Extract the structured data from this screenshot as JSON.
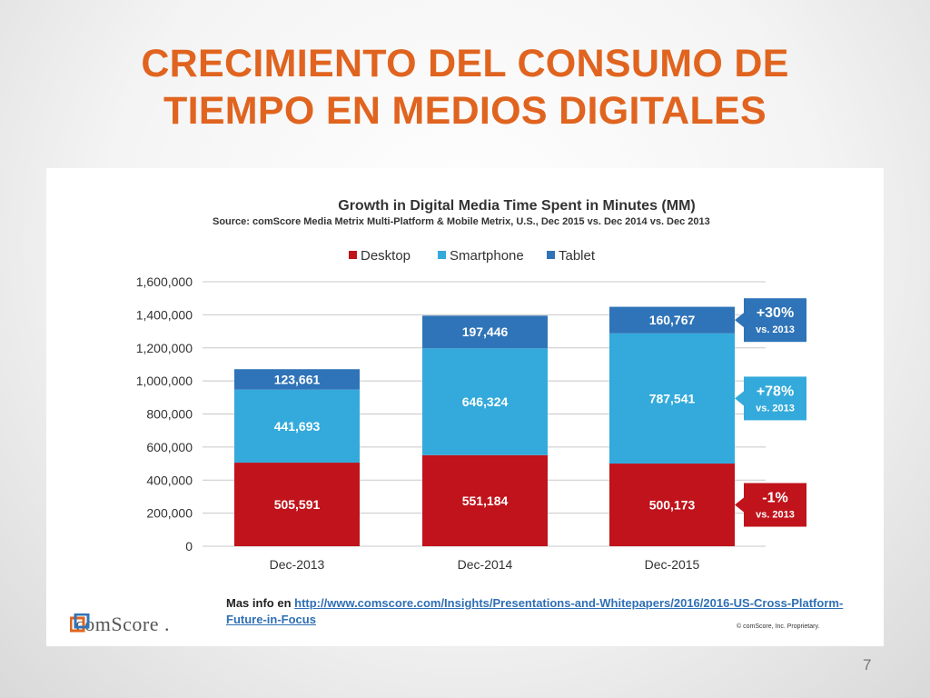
{
  "slide": {
    "title_line1": "CRECIMIENTO DEL CONSUMO DE",
    "title_line2": "TIEMPO EN MEDIOS DIGITALES",
    "page_number": "7"
  },
  "footer": {
    "more_info_prefix": "Mas info en ",
    "link_text": "http://www.comscore.com/Insights/Presentations-and-Whitepapers/2016/2016-US-Cross-Platform-Future-in-Focus",
    "copyright": "© comScore, Inc. Proprietary.",
    "logo_text": "comScore",
    "logo_mark": "."
  },
  "colors": {
    "title": "#e0641f",
    "desktop": "#c0131b",
    "smartphone": "#33aadb",
    "tablet": "#2f74b8",
    "link": "#2f6fb5"
  },
  "chart_data": {
    "type": "bar",
    "stacked": true,
    "title": "Growth in Digital Media Time Spent in Minutes (MM)",
    "subtitle": "Source: comScore Media Metrix Multi-Platform & Mobile Metrix, U.S., Dec 2015 vs. Dec 2014 vs. Dec 2013",
    "categories": [
      "Dec-2013",
      "Dec-2014",
      "Dec-2015"
    ],
    "series": [
      {
        "name": "Desktop",
        "color": "#c0131b",
        "values": [
          505591,
          551184,
          500173
        ],
        "labels": [
          "505,591",
          "551,184",
          "500,173"
        ]
      },
      {
        "name": "Smartphone",
        "color": "#33aadb",
        "values": [
          441693,
          646324,
          787541
        ],
        "labels": [
          "441,693",
          "646,324",
          "787,541"
        ]
      },
      {
        "name": "Tablet",
        "color": "#2f74b8",
        "values": [
          123661,
          197446,
          160767
        ],
        "labels": [
          "123,661",
          "197,446",
          "160,767"
        ]
      }
    ],
    "ylim": [
      0,
      1600000
    ],
    "yticks": [
      0,
      200000,
      400000,
      600000,
      800000,
      1000000,
      1200000,
      1400000,
      1600000
    ],
    "ytick_labels": [
      "0",
      "200,000",
      "400,000",
      "600,000",
      "800,000",
      "1,000,000",
      "1,200,000",
      "1,400,000",
      "1,600,000"
    ],
    "grid": true,
    "legend_position": "top",
    "xlabel": "",
    "ylabel": "",
    "callouts": [
      {
        "series": "Tablet",
        "big": "+30%",
        "small": "vs. 2013"
      },
      {
        "series": "Smartphone",
        "big": "+78%",
        "small": "vs. 2013"
      },
      {
        "series": "Desktop",
        "big": "-1%",
        "small": "vs. 2013"
      }
    ]
  }
}
